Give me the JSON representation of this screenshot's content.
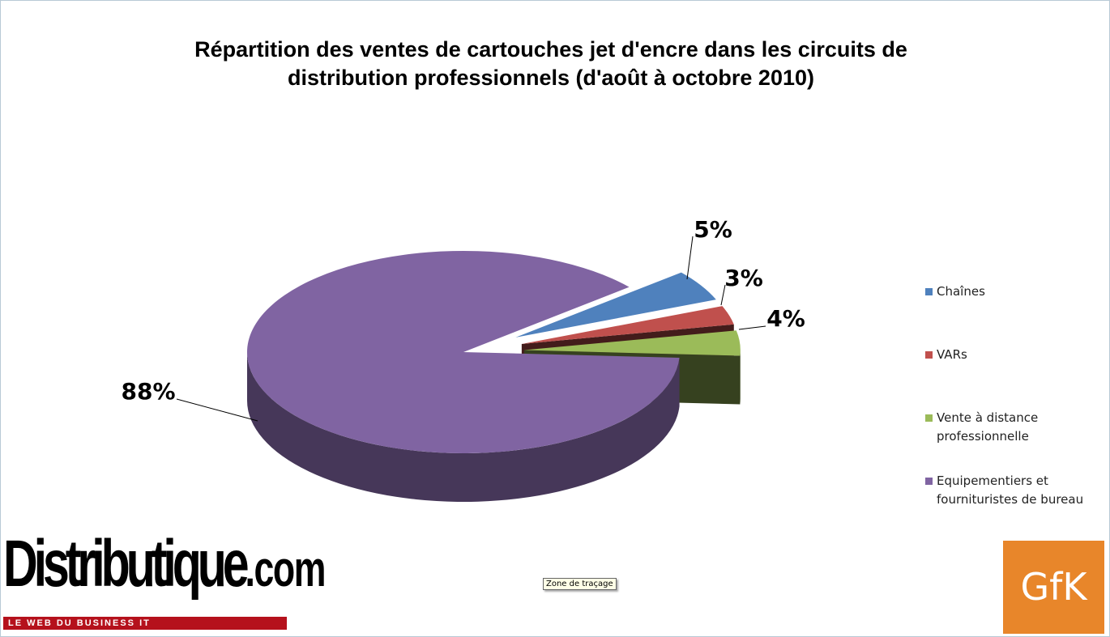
{
  "chart_data": {
    "type": "pie",
    "title": "Répartition des ventes de cartouches jet d'encre dans les circuits de distribution professionnels (d'août à octobre 2010)",
    "categories": [
      "Chaînes",
      "VARs",
      "Vente à distance professionnelle",
      "Equipementiers et fournituristes de bureau"
    ],
    "values": [
      5,
      3,
      4,
      88
    ],
    "value_labels": [
      "5%",
      "3%",
      "4%",
      "88%"
    ],
    "colors": [
      "#4f81bd",
      "#c0504d",
      "#9bbb59",
      "#8064a2"
    ],
    "legend": "right"
  },
  "logos": {
    "left": "Distributique",
    "left_suffix": ".com",
    "left_tagline": "LE WEB DU BUSINESS IT",
    "right": "GfK"
  },
  "tooltip": "Zone de traçage"
}
